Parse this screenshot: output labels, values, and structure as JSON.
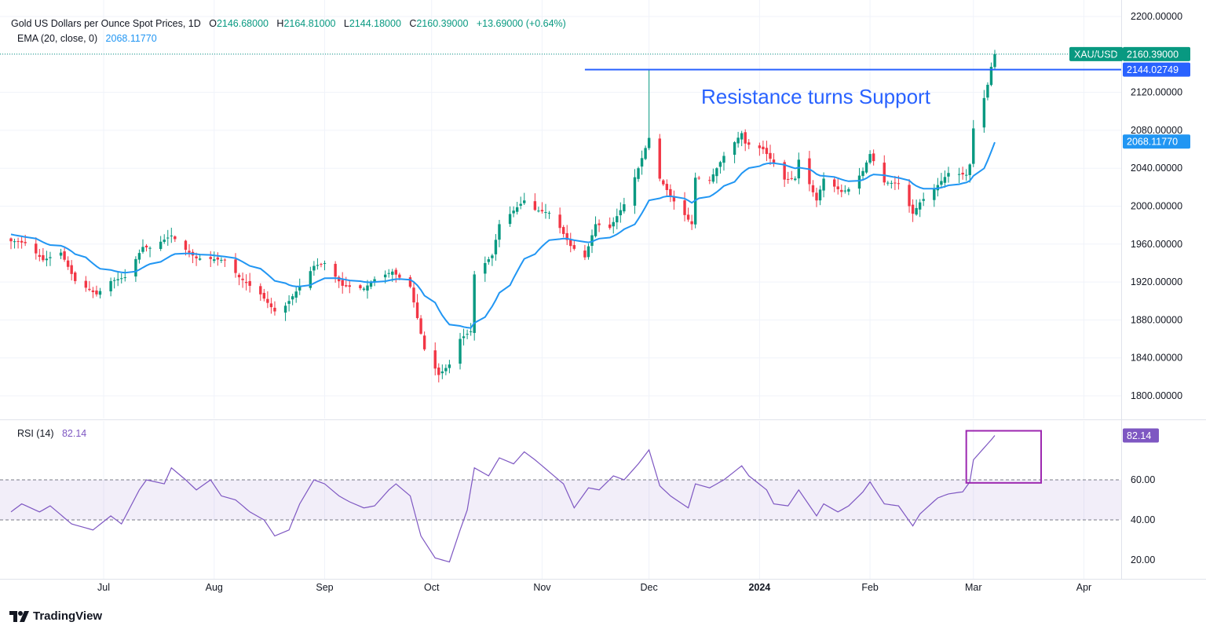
{
  "header": {
    "symbol_title": "Gold US Dollars per Ounce Spot Prices, 1D",
    "open_label": "O",
    "open": "2146.68000",
    "high_label": "H",
    "high": "2164.81000",
    "low_label": "L",
    "low": "2144.18000",
    "close_label": "C",
    "close": "2160.39000",
    "change": "+13.69000 (+0.64%)",
    "ema_label": "EMA (20, close, 0)",
    "ema_value": "2068.11770"
  },
  "rsi_header": {
    "label": "RSI (14)",
    "value": "82.14"
  },
  "annotation": {
    "text": "Resistance turns Support"
  },
  "price_tags": {
    "symbol": "XAU/USD",
    "last_price": "2160.39000",
    "resistance": "2144.02749",
    "ema": "2068.11770",
    "rsi": "82.14"
  },
  "branding": {
    "name": "TradingView"
  },
  "colors": {
    "up": "#089981",
    "down": "#f23645",
    "ema": "#2196f3",
    "rsi": "#7e57c2",
    "resistance": "#2962ff",
    "box": "#9c27b0",
    "rsi_band": "#7e57c2"
  },
  "chart_data": [
    {
      "type": "candlestick",
      "title": "Gold US Dollars per Ounce Spot Prices, 1D",
      "x_ticks": [
        "Jul",
        "Aug",
        "Sep",
        "Oct",
        "Nov",
        "Dec",
        "2024",
        "Feb",
        "Mar",
        "Apr"
      ],
      "y_ticks": [
        "1800.00000",
        "1840.00000",
        "1880.00000",
        "1920.00000",
        "1960.00000",
        "2000.00000",
        "2040.00000",
        "2080.00000",
        "2120.00000",
        "2160.00000",
        "2200.00000"
      ],
      "ylim": [
        1785,
        2205
      ],
      "close_anchors": [
        [
          "2023-06-06",
          1963
        ],
        [
          "2023-06-09",
          1961
        ],
        [
          "2023-06-14",
          1943
        ],
        [
          "2023-06-19",
          1951
        ],
        [
          "2023-06-23",
          1921
        ],
        [
          "2023-06-29",
          1907
        ],
        [
          "2023-07-03",
          1921
        ],
        [
          "2023-07-07",
          1925
        ],
        [
          "2023-07-12",
          1957
        ],
        [
          "2023-07-14",
          1956
        ],
        [
          "2023-07-20",
          1969
        ],
        [
          "2023-07-24",
          1954
        ],
        [
          "2023-07-27",
          1945
        ],
        [
          "2023-08-01",
          1944
        ],
        [
          "2023-08-04",
          1943
        ],
        [
          "2023-08-08",
          1925
        ],
        [
          "2023-08-14",
          1907
        ],
        [
          "2023-08-18",
          1889
        ],
        [
          "2023-08-21",
          1895
        ],
        [
          "2023-08-25",
          1915
        ],
        [
          "2023-08-29",
          1937
        ],
        [
          "2023-09-01",
          1940
        ],
        [
          "2023-09-06",
          1916
        ],
        [
          "2023-09-12",
          1913
        ],
        [
          "2023-09-15",
          1923
        ],
        [
          "2023-09-20",
          1931
        ],
        [
          "2023-09-25",
          1915
        ],
        [
          "2023-09-29",
          1849
        ],
        [
          "2023-10-03",
          1822
        ],
        [
          "2023-10-06",
          1833
        ],
        [
          "2023-10-09",
          1860
        ],
        [
          "2023-10-12",
          1868
        ],
        [
          "2023-10-13",
          1928
        ],
        [
          "2023-10-18",
          1948
        ],
        [
          "2023-10-20",
          1981
        ],
        [
          "2023-10-27",
          2006
        ],
        [
          "2023-10-30",
          1996
        ],
        [
          "2023-11-03",
          1993
        ],
        [
          "2023-11-06",
          1977
        ],
        [
          "2023-11-09",
          1958
        ],
        [
          "2023-11-13",
          1946
        ],
        [
          "2023-11-16",
          1981
        ],
        [
          "2023-11-20",
          1977
        ],
        [
          "2023-11-24",
          2002
        ],
        [
          "2023-11-28",
          2040
        ],
        [
          "2023-12-01",
          2072
        ],
        [
          "2023-12-04",
          2029
        ],
        [
          "2023-12-08",
          2005
        ],
        [
          "2023-12-13",
          1981
        ],
        [
          "2023-12-14",
          2030
        ],
        [
          "2023-12-18",
          2027
        ],
        [
          "2023-12-22",
          2053
        ],
        [
          "2023-12-27",
          2077
        ],
        [
          "2023-12-28",
          2066
        ],
        [
          "2024-01-02",
          2060
        ],
        [
          "2024-01-05",
          2045
        ],
        [
          "2024-01-08",
          2028
        ],
        [
          "2024-01-11",
          2029
        ],
        [
          "2024-01-12",
          2049
        ],
        [
          "2024-01-17",
          2006
        ],
        [
          "2024-01-19",
          2029
        ],
        [
          "2024-01-24",
          2015
        ],
        [
          "2024-01-26",
          2018
        ],
        [
          "2024-01-30",
          2037
        ],
        [
          "2024-02-01",
          2055
        ],
        [
          "2024-02-05",
          2025
        ],
        [
          "2024-02-09",
          2024
        ],
        [
          "2024-02-13",
          1992
        ],
        [
          "2024-02-15",
          2004
        ],
        [
          "2024-02-19",
          2018
        ],
        [
          "2024-02-23",
          2035
        ],
        [
          "2024-02-28",
          2033
        ],
        [
          "2024-02-29",
          2044
        ],
        [
          "2024-03-01",
          2082
        ],
        [
          "2024-03-04",
          2114
        ],
        [
          "2024-03-05",
          2128
        ],
        [
          "2024-03-06",
          2147
        ],
        [
          "2024-03-07",
          2160.39
        ]
      ],
      "last_candle": {
        "date": "2024-03-07",
        "open": 2146.68,
        "high": 2164.81,
        "low": 2144.18,
        "close": 2160.39
      },
      "spike": {
        "date": "2023-12-01",
        "high": 2144.03
      },
      "series": [
        {
          "name": "EMA (20, close, 0)",
          "last": 2068.1177
        }
      ],
      "resistance_level": 2144.02749,
      "resistance_span": [
        "2023-11-13",
        "2024-03-07"
      ]
    },
    {
      "type": "line",
      "title": "RSI (14)",
      "y_ticks": [
        "20.00",
        "40.00",
        "60.00"
      ],
      "ylim": [
        12,
        85
      ],
      "band": [
        40,
        60
      ],
      "rsi_anchors": [
        [
          "2023-06-05",
          44
        ],
        [
          "2023-06-08",
          48
        ],
        [
          "2023-06-13",
          44
        ],
        [
          "2023-06-16",
          47
        ],
        [
          "2023-06-22",
          38
        ],
        [
          "2023-06-28",
          35
        ],
        [
          "2023-07-03",
          42
        ],
        [
          "2023-07-06",
          38
        ],
        [
          "2023-07-11",
          55
        ],
        [
          "2023-07-13",
          60
        ],
        [
          "2023-07-18",
          58
        ],
        [
          "2023-07-20",
          66
        ],
        [
          "2023-07-24",
          60
        ],
        [
          "2023-07-27",
          55
        ],
        [
          "2023-07-31",
          60
        ],
        [
          "2023-08-03",
          52
        ],
        [
          "2023-08-07",
          50
        ],
        [
          "2023-08-11",
          44
        ],
        [
          "2023-08-15",
          40
        ],
        [
          "2023-08-18",
          32
        ],
        [
          "2023-08-22",
          35
        ],
        [
          "2023-08-25",
          48
        ],
        [
          "2023-08-29",
          60
        ],
        [
          "2023-09-01",
          58
        ],
        [
          "2023-09-05",
          52
        ],
        [
          "2023-09-08",
          49
        ],
        [
          "2023-09-12",
          46
        ],
        [
          "2023-09-15",
          47
        ],
        [
          "2023-09-19",
          55
        ],
        [
          "2023-09-21",
          58
        ],
        [
          "2023-09-25",
          52
        ],
        [
          "2023-09-28",
          32
        ],
        [
          "2023-10-02",
          21
        ],
        [
          "2023-10-06",
          19
        ],
        [
          "2023-10-09",
          35
        ],
        [
          "2023-10-11",
          45
        ],
        [
          "2023-10-13",
          66
        ],
        [
          "2023-10-17",
          62
        ],
        [
          "2023-10-20",
          71
        ],
        [
          "2023-10-24",
          68
        ],
        [
          "2023-10-27",
          74
        ],
        [
          "2023-10-30",
          70
        ],
        [
          "2023-11-03",
          64
        ],
        [
          "2023-11-07",
          58
        ],
        [
          "2023-11-10",
          46
        ],
        [
          "2023-11-14",
          56
        ],
        [
          "2023-11-17",
          55
        ],
        [
          "2023-11-21",
          62
        ],
        [
          "2023-11-24",
          60
        ],
        [
          "2023-11-28",
          68
        ],
        [
          "2023-12-01",
          75
        ],
        [
          "2023-12-04",
          57
        ],
        [
          "2023-12-07",
          52
        ],
        [
          "2023-12-12",
          46
        ],
        [
          "2023-12-14",
          58
        ],
        [
          "2023-12-18",
          56
        ],
        [
          "2023-12-22",
          60
        ],
        [
          "2023-12-27",
          67
        ],
        [
          "2023-12-29",
          62
        ],
        [
          "2024-01-03",
          55
        ],
        [
          "2024-01-05",
          48
        ],
        [
          "2024-01-09",
          47
        ],
        [
          "2024-01-12",
          55
        ],
        [
          "2024-01-17",
          42
        ],
        [
          "2024-01-19",
          48
        ],
        [
          "2024-01-23",
          44
        ],
        [
          "2024-01-26",
          47
        ],
        [
          "2024-01-30",
          54
        ],
        [
          "2024-02-01",
          59
        ],
        [
          "2024-02-05",
          48
        ],
        [
          "2024-02-09",
          47
        ],
        [
          "2024-02-13",
          37
        ],
        [
          "2024-02-15",
          43
        ],
        [
          "2024-02-20",
          51
        ],
        [
          "2024-02-23",
          53
        ],
        [
          "2024-02-27",
          54
        ],
        [
          "2024-02-29",
          59
        ],
        [
          "2024-03-01",
          70
        ],
        [
          "2024-03-04",
          76
        ],
        [
          "2024-03-05",
          78
        ],
        [
          "2024-03-06",
          80
        ],
        [
          "2024-03-07",
          82.14
        ]
      ],
      "highlight_box": {
        "date_from": "2024-02-28",
        "date_to": "2024-03-20",
        "y_from": 58.5,
        "y_to": 84.5
      }
    }
  ]
}
